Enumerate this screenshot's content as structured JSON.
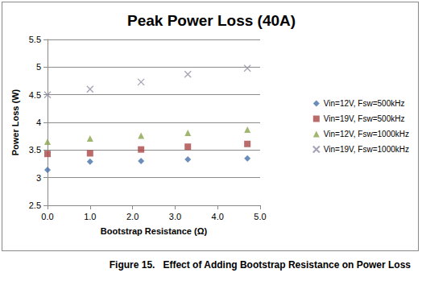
{
  "chart_data": {
    "type": "scatter",
    "title": "Peak Power Loss (40A)",
    "caption": "Figure 15.   Effect of Adding Bootstrap Resistance on Power Loss",
    "x_label": "Bootstrap Resistance (Ω)",
    "y_label": "Power Loss (W)",
    "x": [
      0,
      1,
      2.2,
      3.3,
      4.7
    ],
    "series": [
      {
        "name": "Vin=12V, Fsw=500kHz",
        "color": "#4572a7",
        "marker": "diamond",
        "values": [
          3.14,
          3.29,
          3.3,
          3.33,
          3.35
        ]
      },
      {
        "name": "Vin=19V, Fsw=500kHz",
        "color": "#aa4643",
        "marker": "square",
        "values": [
          3.43,
          3.44,
          3.51,
          3.56,
          3.61
        ]
      },
      {
        "name": "Vin=12V, Fsw=1000kHz",
        "color": "#89a54e",
        "marker": "triangle",
        "values": [
          3.65,
          3.71,
          3.76,
          3.81,
          3.87
        ]
      },
      {
        "name": "Vin=19V, Fsw=1000kHz",
        "color": "#8c8ca0",
        "marker": "x",
        "values": [
          4.5,
          4.6,
          4.73,
          4.87,
          4.98
        ]
      }
    ],
    "xlim": [
      0,
      5
    ],
    "xticks": [
      {
        "value": 0,
        "label": "0.0"
      },
      {
        "value": 1,
        "label": "1.0"
      },
      {
        "value": 2,
        "label": "2.0"
      },
      {
        "value": 3,
        "label": "3.0"
      },
      {
        "value": 4,
        "label": "4.0"
      },
      {
        "value": 5,
        "label": "5.0"
      }
    ],
    "ylim": [
      2.5,
      5.5
    ],
    "yticks": [
      2.5,
      3,
      3.5,
      4,
      4.5,
      5,
      5.5
    ],
    "grid": true,
    "legend": "right"
  }
}
